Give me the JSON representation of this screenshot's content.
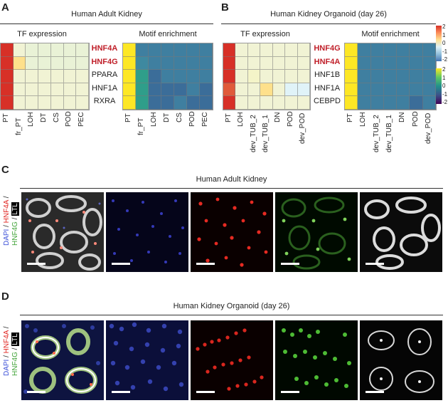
{
  "panels": {
    "a": {
      "letter": "A",
      "title": "Human Adult Kidney",
      "left_subtitle": "TF expression",
      "right_subtitle": "Motif enrichment",
      "genes": [
        {
          "name": "HNF4A",
          "highlight": true
        },
        {
          "name": "HNF4G",
          "highlight": true
        },
        {
          "name": "PPARA",
          "highlight": false
        },
        {
          "name": "HNF1A",
          "highlight": false
        },
        {
          "name": "RXRA",
          "highlight": false
        }
      ],
      "columns": [
        "PT",
        "fr_PT",
        "LOH",
        "DT",
        "CS",
        "POD",
        "PEC"
      ]
    },
    "b": {
      "letter": "B",
      "title": "Human Kidney Organoid (day 26)",
      "left_subtitle": "TF expression",
      "right_subtitle": "Motif enrichment",
      "genes": [
        {
          "name": "HNF4G",
          "highlight": true
        },
        {
          "name": "HNF4A",
          "highlight": true
        },
        {
          "name": "HNF1B",
          "highlight": false
        },
        {
          "name": "HNF1A",
          "highlight": false
        },
        {
          "name": "CEBPD",
          "highlight": false
        }
      ],
      "columns": [
        "PT",
        "LOH",
        "dev_TUB_2",
        "dev_TUB_1",
        "DN",
        "POD",
        "dev_POD"
      ]
    },
    "c": {
      "letter": "C",
      "title": "Human Adult Kidney"
    },
    "d": {
      "letter": "D",
      "title": "Human Kidney Organoid (day 26)"
    }
  },
  "colorbars": {
    "expression_ticks": [
      "2",
      "1",
      "0",
      "-1",
      "-2"
    ],
    "motif_ticks": [
      "2",
      "1",
      "0",
      "-1",
      "-2"
    ]
  },
  "stain_legend": {
    "dapi": "DAPI",
    "hnf4a": "HNF4A",
    "hnf4g": "HNF4G",
    "ltl": "LTL",
    "sep": " / "
  },
  "colors": {
    "red_label": "#c0202a",
    "dapi": "#3b4fd8",
    "hnf4a": "#e0201c",
    "hnf4g": "#3fa336",
    "ltl": "#ffffff"
  }
}
